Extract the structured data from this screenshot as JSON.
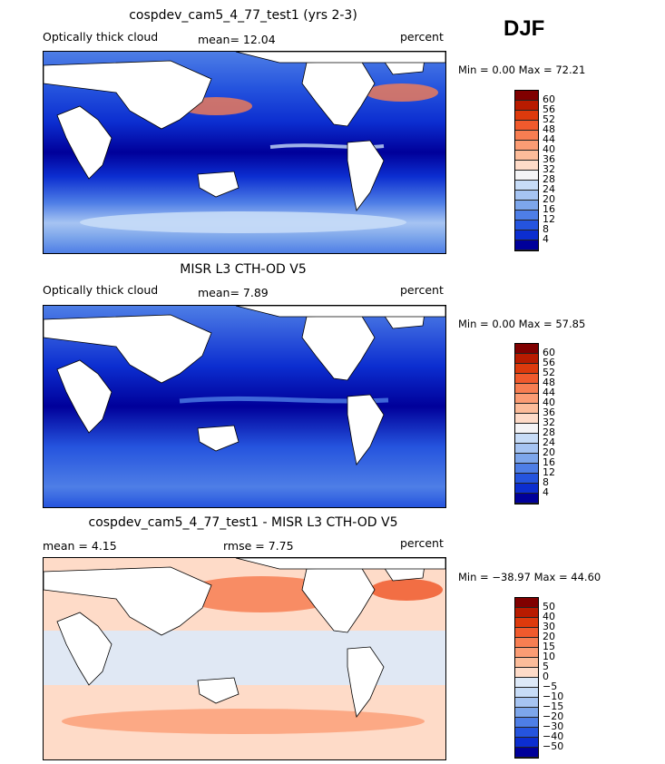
{
  "season": "DJF",
  "panels": [
    {
      "title": "cospdev_cam5_4_77_test1 (yrs 2-3)",
      "left_label": "Optically thick cloud",
      "mean_text": "mean=   12.04",
      "right_label": "percent",
      "range_text": "Min =    0.00 Max =   72.21",
      "colorbar_labels": [
        "60",
        "56",
        "52",
        "48",
        "44",
        "40",
        "36",
        "32",
        "28",
        "24",
        "20",
        "16",
        "12",
        "8",
        "4"
      ],
      "colors": [
        "#800000",
        "#b81b00",
        "#dd3a0d",
        "#f05a2d",
        "#f77e52",
        "#fb9c74",
        "#fcbc9a",
        "#fedbc8",
        "#f4f4f6",
        "#c7dcf7",
        "#a6c4f2",
        "#7da6eb",
        "#4e7ee6",
        "#2554de",
        "#0c2ed0",
        "#00009a"
      ]
    },
    {
      "title": "MISR L3 CTH-OD V5",
      "left_label": "Optically thick cloud",
      "mean_text": "mean=    7.89",
      "right_label": "percent",
      "range_text": "Min =    0.00 Max =   57.85",
      "colorbar_labels": [
        "60",
        "56",
        "52",
        "48",
        "44",
        "40",
        "36",
        "32",
        "28",
        "24",
        "20",
        "16",
        "12",
        "8",
        "4"
      ],
      "colors": [
        "#800000",
        "#b81b00",
        "#dd3a0d",
        "#f05a2d",
        "#f77e52",
        "#fb9c74",
        "#fcbc9a",
        "#fedbc8",
        "#f4f4f6",
        "#c7dcf7",
        "#a6c4f2",
        "#7da6eb",
        "#4e7ee6",
        "#2554de",
        "#0c2ed0",
        "#00009a"
      ]
    },
    {
      "title": "cospdev_cam5_4_77_test1 - MISR L3 CTH-OD V5",
      "left_label": "mean =    4.15",
      "mean_text": "rmse =    7.75",
      "right_label": "percent",
      "range_text": "Min = −38.97 Max =   44.60",
      "colorbar_labels": [
        "50",
        "40",
        "30",
        "20",
        "15",
        "10",
        "5",
        "0",
        "−5",
        "−10",
        "−15",
        "−20",
        "−30",
        "−40",
        "−50"
      ],
      "colors": [
        "#800000",
        "#b81b00",
        "#dd3a0d",
        "#f05a2d",
        "#f77e52",
        "#fb9c74",
        "#fcbc9a",
        "#fedbc8",
        "#dde9f8",
        "#c7dcf7",
        "#a6c4f2",
        "#7da6eb",
        "#4e7ee6",
        "#2554de",
        "#0c2ed0",
        "#00009a"
      ]
    }
  ]
}
